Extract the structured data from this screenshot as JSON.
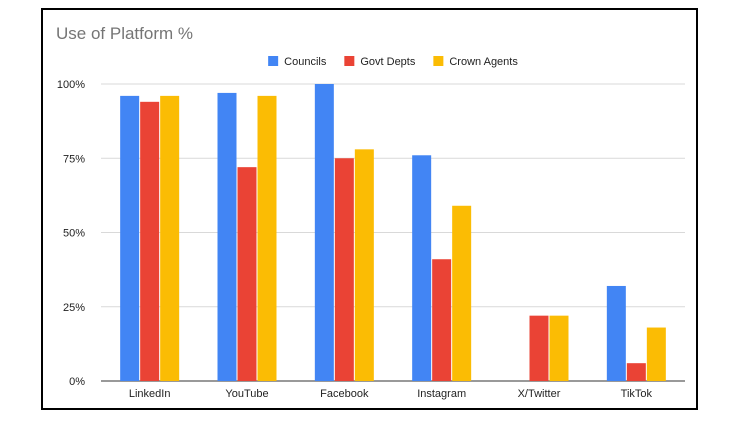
{
  "chart_data": {
    "type": "bar",
    "title": "Use of Platform %",
    "categories": [
      "LinkedIn",
      "YouTube",
      "Facebook",
      "Instagram",
      "X/Twitter",
      "TikTok"
    ],
    "series": [
      {
        "name": "Councils",
        "color": "#4285F4",
        "values": [
          96,
          97,
          100,
          76,
          0,
          32
        ]
      },
      {
        "name": "Govt Depts",
        "color": "#EA4335",
        "values": [
          94,
          72,
          75,
          41,
          22,
          6
        ]
      },
      {
        "name": "Crown Agents",
        "color": "#FBBC04",
        "values": [
          96,
          96,
          78,
          59,
          22,
          18
        ]
      }
    ],
    "ylim": [
      0,
      100
    ],
    "yticks": [
      0,
      25,
      50,
      75,
      100
    ],
    "ytick_labels": [
      "0%",
      "25%",
      "50%",
      "75%",
      "100%"
    ],
    "legend_position": "top-center",
    "grid": true
  }
}
